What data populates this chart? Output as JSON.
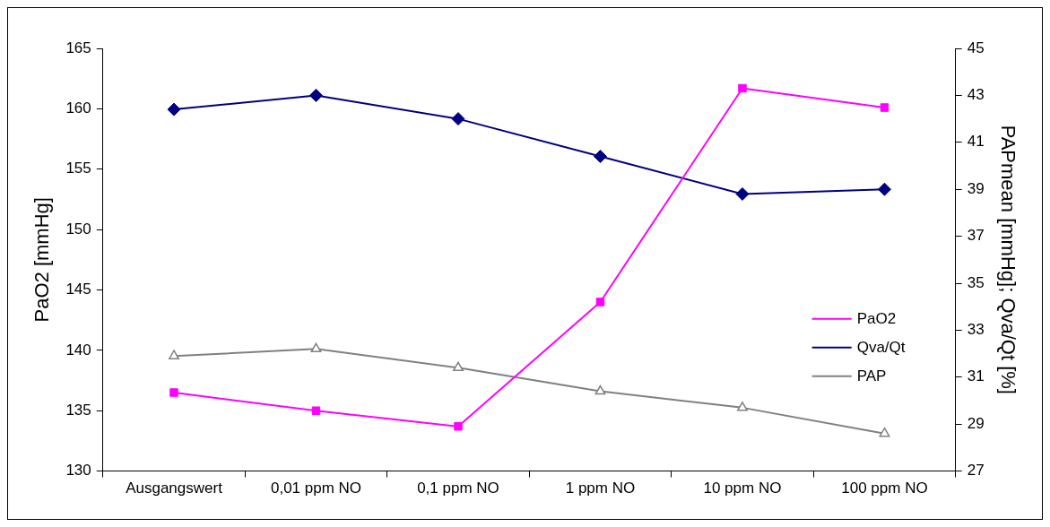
{
  "chart_data": {
    "type": "line",
    "ylabel": "PaO2 [mmHg]",
    "y2label": "PAPmean [mmHg]; Qva/Qt [%]",
    "categories": [
      "Ausgangswert",
      "0,01 ppm NO",
      "0,1 ppm NO",
      "1 ppm NO",
      "10 ppm NO",
      "100 ppm NO"
    ],
    "series": [
      {
        "name": "PaO2",
        "color": "#ff00ff",
        "marker": "square",
        "values": [
          136.5,
          135.0,
          133.7,
          144.0,
          161.7,
          160.1
        ]
      },
      {
        "name": "Qva/Qt",
        "color": "#000080",
        "marker": "diamond",
        "axis": "y2",
        "values": [
          42.4,
          43.0,
          42.0,
          40.4,
          38.8,
          39.0
        ]
      },
      {
        "name": "PAP",
        "color": "#808080",
        "marker": "triangle",
        "axis": "y2",
        "values": [
          31.9,
          32.2,
          31.4,
          30.4,
          29.7,
          28.6
        ]
      }
    ],
    "ylim": [
      130,
      165
    ],
    "yticks": [
      130,
      135,
      140,
      145,
      150,
      155,
      160,
      165
    ],
    "y2lim": [
      27,
      45
    ],
    "y2ticks": [
      27,
      29,
      31,
      33,
      35,
      37,
      39,
      41,
      43,
      45
    ],
    "grid": false,
    "legend": "right"
  }
}
